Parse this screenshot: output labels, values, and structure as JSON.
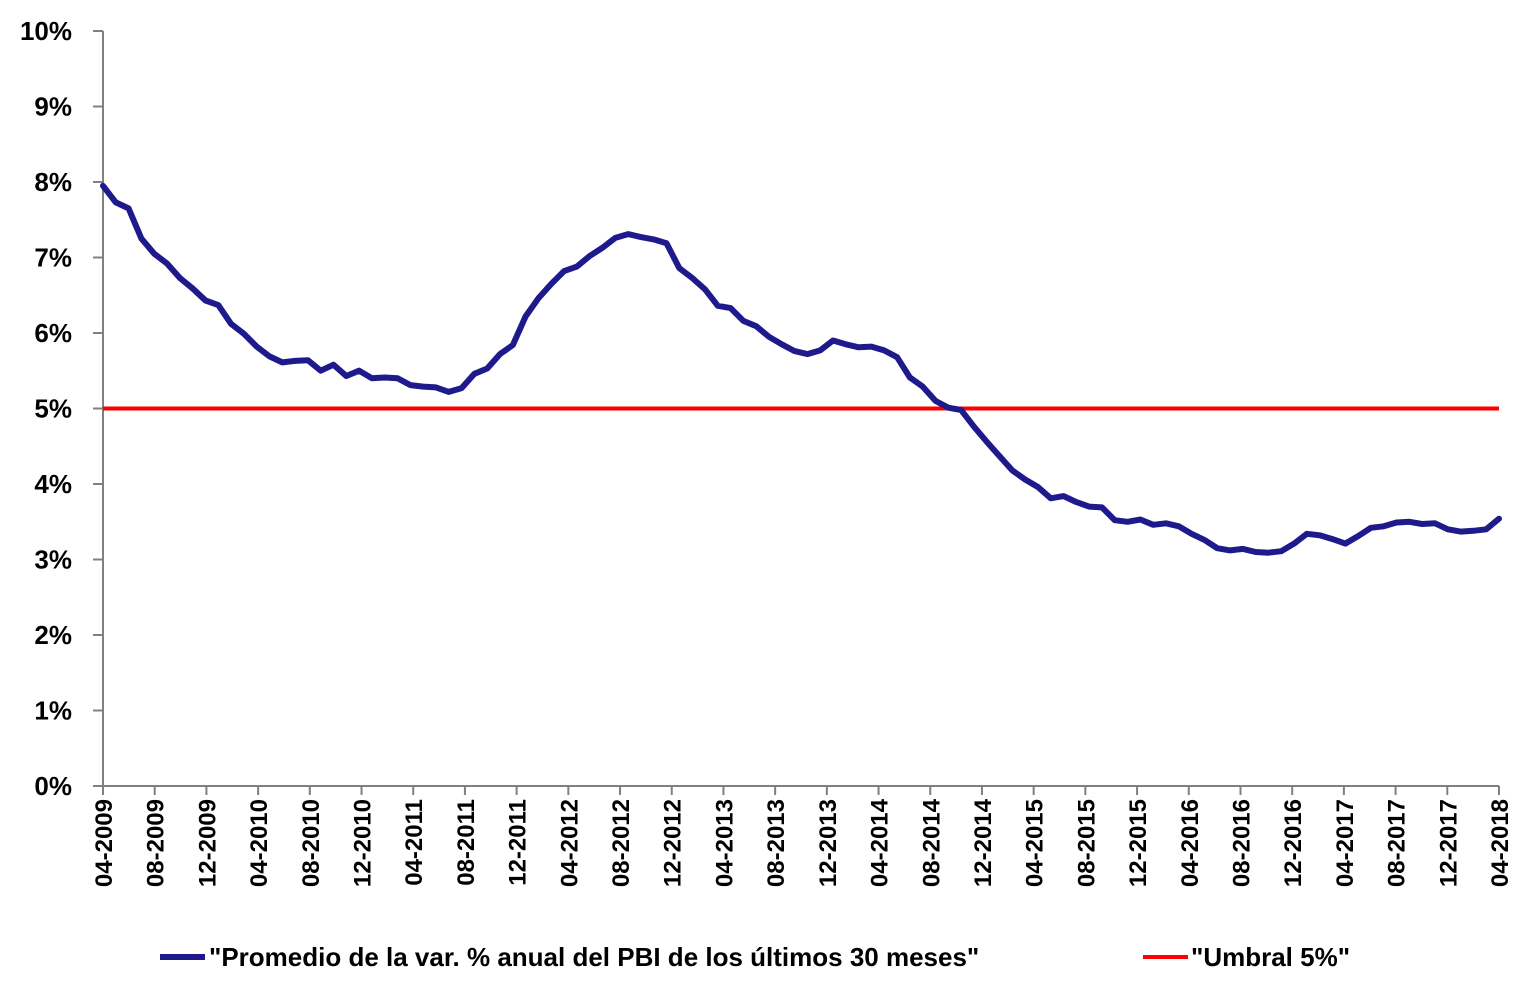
{
  "chart_data": {
    "type": "line",
    "title": "",
    "xlabel": "",
    "ylabel": "",
    "ylim": [
      0,
      10
    ],
    "y_ticks": [
      "0%",
      "1%",
      "2%",
      "3%",
      "4%",
      "5%",
      "6%",
      "7%",
      "8%",
      "9%",
      "10%"
    ],
    "x_ticks": [
      "04-2009",
      "08-2009",
      "12-2009",
      "04-2010",
      "08-2010",
      "12-2010",
      "04-2011",
      "08-2011",
      "12-2011",
      "04-2012",
      "08-2012",
      "12-2012",
      "04-2013",
      "08-2013",
      "12-2013",
      "04-2014",
      "08-2014",
      "12-2014",
      "04-2015",
      "08-2015",
      "12-2015",
      "04-2016",
      "08-2016",
      "12-2016",
      "04-2017",
      "08-2017",
      "12-2017",
      "04-2018"
    ],
    "x_start": "04-2009",
    "x_end": "04-2018",
    "grid": false,
    "legend_position": "bottom",
    "series": [
      {
        "name": "\"Promedio de la var. % anual del PBI de los últimos 30 meses\"",
        "color": "#1F1A8C",
        "values": [
          7.95,
          7.73,
          7.65,
          7.25,
          7.05,
          6.92,
          6.73,
          6.59,
          6.43,
          6.37,
          6.12,
          5.99,
          5.82,
          5.69,
          5.61,
          5.63,
          5.64,
          5.5,
          5.58,
          5.43,
          5.5,
          5.4,
          5.41,
          5.4,
          5.31,
          5.29,
          5.28,
          5.22,
          5.27,
          5.46,
          5.53,
          5.72,
          5.84,
          6.22,
          6.46,
          6.65,
          6.82,
          6.88,
          7.02,
          7.13,
          7.26,
          7.31,
          7.27,
          7.24,
          7.19,
          6.86,
          6.73,
          6.58,
          6.36,
          6.33,
          6.16,
          6.09,
          5.95,
          5.85,
          5.76,
          5.72,
          5.77,
          5.9,
          5.85,
          5.81,
          5.82,
          5.77,
          5.68,
          5.41,
          5.29,
          5.1,
          5.01,
          4.98,
          4.76,
          4.56,
          4.37,
          4.18,
          4.06,
          3.96,
          3.81,
          3.84,
          3.76,
          3.7,
          3.69,
          3.52,
          3.5,
          3.53,
          3.46,
          3.48,
          3.44,
          3.34,
          3.26,
          3.15,
          3.12,
          3.14,
          3.1,
          3.09,
          3.11,
          3.21,
          3.34,
          3.32,
          3.27,
          3.21,
          3.31,
          3.42,
          3.44,
          3.49,
          3.5,
          3.47,
          3.48,
          3.4,
          3.37,
          3.38,
          3.4,
          3.54
        ]
      },
      {
        "name": "\"Umbral 5%\"",
        "color": "#FF0000",
        "values": [
          5,
          5
        ]
      }
    ]
  }
}
